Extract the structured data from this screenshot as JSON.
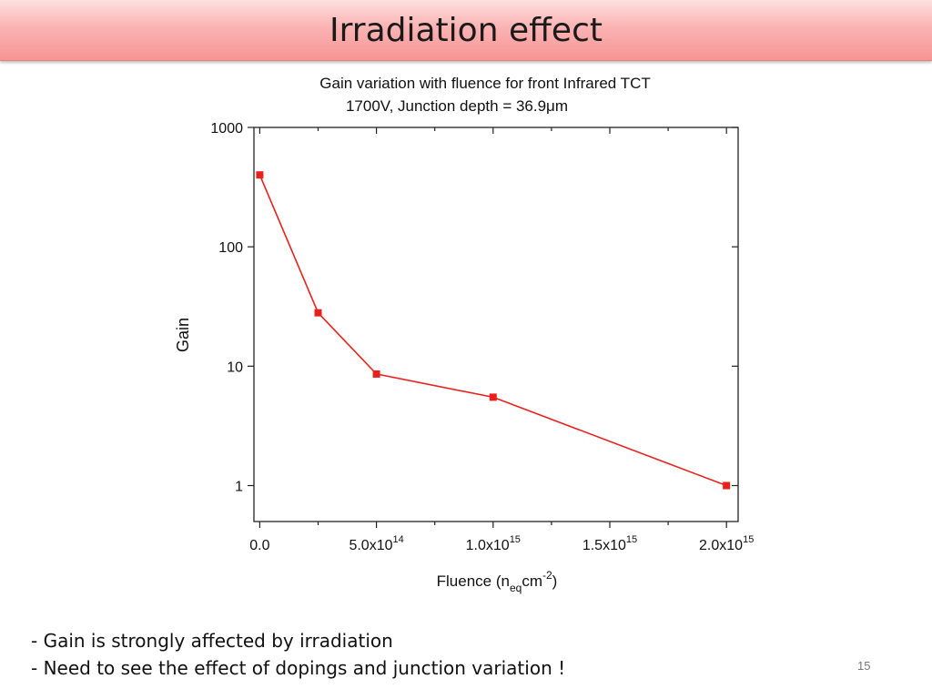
{
  "slide": {
    "title": "Irradiation effect",
    "bullets": [
      "- Gain is strongly affected by irradiation",
      "- Need to see the effect of dopings and junction variation !"
    ],
    "page_number": "15"
  },
  "chart_data": {
    "type": "line",
    "title_line1": "Gain variation with fluence for front Infrared TCT",
    "title_line2": "1700V, Junction depth = 36.9μm",
    "ylabel": "Gain",
    "xlabel_parts": {
      "base": "Fluence (n",
      "sub": "eq",
      "mid": "cm",
      "sup": "-2",
      "end": ")"
    },
    "y_scale": "log",
    "ylim": [
      0.5,
      1000
    ],
    "xlim": [
      -25000000000000.0,
      2050000000000000.0
    ],
    "y_ticks": [
      {
        "value": 1,
        "label": "1"
      },
      {
        "value": 10,
        "label": "10"
      },
      {
        "value": 100,
        "label": "100"
      },
      {
        "value": 1000,
        "label": "1000"
      }
    ],
    "x_ticks": [
      {
        "value": 0,
        "mant": "0.0",
        "exp": ""
      },
      {
        "value": 500000000000000.0,
        "mant": "5.0x10",
        "exp": "14"
      },
      {
        "value": 1000000000000000.0,
        "mant": "1.0x10",
        "exp": "15"
      },
      {
        "value": 1500000000000000.0,
        "mant": "1.5x10",
        "exp": "15"
      },
      {
        "value": 2000000000000000.0,
        "mant": "2.0x10",
        "exp": "15"
      }
    ],
    "series": [
      {
        "color": "#e8211d",
        "points": [
          {
            "x": 0,
            "y": 400
          },
          {
            "x": 250000000000000.0,
            "y": 28
          },
          {
            "x": 500000000000000.0,
            "y": 8.6
          },
          {
            "x": 1000000000000000.0,
            "y": 5.5
          },
          {
            "x": 2000000000000000.0,
            "y": 1.0
          }
        ]
      }
    ],
    "grid": false,
    "legend": "none"
  }
}
